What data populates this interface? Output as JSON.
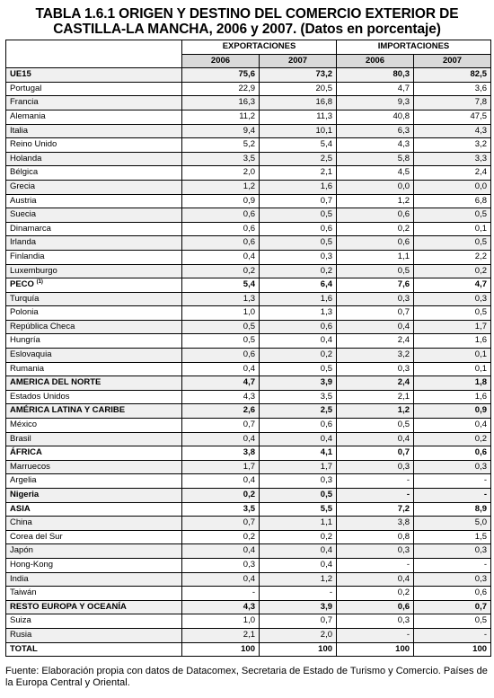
{
  "title": {
    "line1": "TABLA 1.6.1 ORIGEN Y DESTINO DEL COMERCIO EXTERIOR DE",
    "line2": "CASTILLA-LA MANCHA, 2006 y 2007. (Datos en porcentaje)"
  },
  "header": {
    "exportaciones": "EXPORTACIONES",
    "importaciones": "IMPORTACIONES",
    "years": [
      "2006",
      "2007",
      "2006",
      "2007"
    ]
  },
  "rows": [
    {
      "name": "UE15",
      "bold": true,
      "values": [
        "75,6",
        "73,2",
        "80,3",
        "82,5"
      ]
    },
    {
      "name": "Portugal",
      "values": [
        "22,9",
        "20,5",
        "4,7",
        "3,6"
      ]
    },
    {
      "name": "Francia",
      "values": [
        "16,3",
        "16,8",
        "9,3",
        "7,8"
      ]
    },
    {
      "name": "Alemania",
      "values": [
        "11,2",
        "11,3",
        "40,8",
        "47,5"
      ]
    },
    {
      "name": "Italia",
      "values": [
        "9,4",
        "10,1",
        "6,3",
        "4,3"
      ]
    },
    {
      "name": "Reino Unido",
      "values": [
        "5,2",
        "5,4",
        "4,3",
        "3,2"
      ]
    },
    {
      "name": "Holanda",
      "values": [
        "3,5",
        "2,5",
        "5,8",
        "3,3"
      ]
    },
    {
      "name": "Bélgica",
      "values": [
        "2,0",
        "2,1",
        "4,5",
        "2,4"
      ]
    },
    {
      "name": "Grecia",
      "values": [
        "1,2",
        "1,6",
        "0,0",
        "0,0"
      ]
    },
    {
      "name": "Austria",
      "values": [
        "0,9",
        "0,7",
        "1,2",
        "6,8"
      ]
    },
    {
      "name": "Suecia",
      "values": [
        "0,6",
        "0,5",
        "0,6",
        "0,5"
      ]
    },
    {
      "name": "Dinamarca",
      "values": [
        "0,6",
        "0,6",
        "0,2",
        "0,1"
      ]
    },
    {
      "name": "Irlanda",
      "values": [
        "0,6",
        "0,5",
        "0,6",
        "0,5"
      ]
    },
    {
      "name": "Finlandia",
      "values": [
        "0,4",
        "0,3",
        "1,1",
        "2,2"
      ]
    },
    {
      "name": "Luxemburgo",
      "values": [
        "0,2",
        "0,2",
        "0,5",
        "0,2"
      ]
    },
    {
      "name": "PECO",
      "sup": "(1)",
      "bold": true,
      "values": [
        "5,4",
        "6,4",
        "7,6",
        "4,7"
      ]
    },
    {
      "name": "Turquía",
      "values": [
        "1,3",
        "1,6",
        "0,3",
        "0,3"
      ]
    },
    {
      "name": "Polonia",
      "values": [
        "1,0",
        "1,3",
        "0,7",
        "0,5"
      ]
    },
    {
      "name": "República Checa",
      "values": [
        "0,5",
        "0,6",
        "0,4",
        "1,7"
      ]
    },
    {
      "name": "Hungría",
      "values": [
        "0,5",
        "0,4",
        "2,4",
        "1,6"
      ]
    },
    {
      "name": "Eslovaquia",
      "values": [
        "0,6",
        "0,2",
        "3,2",
        "0,1"
      ]
    },
    {
      "name": "Rumania",
      "values": [
        "0,4",
        "0,5",
        "0,3",
        "0,1"
      ]
    },
    {
      "name": "AMERICA DEL NORTE",
      "bold": true,
      "values": [
        "4,7",
        "3,9",
        "2,4",
        "1,8"
      ]
    },
    {
      "name": "Estados Unidos",
      "values": [
        "4,3",
        "3,5",
        "2,1",
        "1,6"
      ]
    },
    {
      "name": "AMÉRICA LATINA Y CARIBE",
      "bold": true,
      "values": [
        "2,6",
        "2,5",
        "1,2",
        "0,9"
      ]
    },
    {
      "name": "México",
      "values": [
        "0,7",
        "0,6",
        "0,5",
        "0,4"
      ]
    },
    {
      "name": "Brasil",
      "values": [
        "0,4",
        "0,4",
        "0,4",
        "0,2"
      ]
    },
    {
      "name": "ÁFRICA",
      "bold": true,
      "values": [
        "3,8",
        "4,1",
        "0,7",
        "0,6"
      ]
    },
    {
      "name": "Marruecos",
      "values": [
        "1,7",
        "1,7",
        "0,3",
        "0,3"
      ]
    },
    {
      "name": "Argelia",
      "values": [
        "0,4",
        "0,3",
        "-",
        "-"
      ]
    },
    {
      "name": "Nigeria",
      "bold": true,
      "values": [
        "0,2",
        "0,5",
        "-",
        "-"
      ]
    },
    {
      "name": "ASIA",
      "bold": true,
      "values": [
        "3,5",
        "5,5",
        "7,2",
        "8,9"
      ]
    },
    {
      "name": "China",
      "values": [
        "0,7",
        "1,1",
        "3,8",
        "5,0"
      ]
    },
    {
      "name": "Corea del Sur",
      "values": [
        "0,2",
        "0,2",
        "0,8",
        "1,5"
      ]
    },
    {
      "name": "Japón",
      "values": [
        "0,4",
        "0,4",
        "0,3",
        "0,3"
      ]
    },
    {
      "name": "Hong-Kong",
      "values": [
        "0,3",
        "0,4",
        "-",
        "-"
      ]
    },
    {
      "name": "India",
      "values": [
        "0,4",
        "1,2",
        "0,4",
        "0,3"
      ]
    },
    {
      "name": "Taiwán",
      "values": [
        "-",
        "-",
        "0,2",
        "0,6"
      ]
    },
    {
      "name": "RESTO EUROPA Y OCEANÍA",
      "bold": true,
      "values": [
        "4,3",
        "3,9",
        "0,6",
        "0,7"
      ]
    },
    {
      "name": "Suiza",
      "values": [
        "1,0",
        "0,7",
        "0,3",
        "0,5"
      ]
    },
    {
      "name": "Rusia",
      "values": [
        "2,1",
        "2,0",
        "-",
        "-"
      ]
    },
    {
      "name": "TOTAL",
      "total": true,
      "values": [
        "100",
        "100",
        "100",
        "100"
      ]
    }
  ],
  "source": "Fuente: Elaboración propia con datos de Datacomex, Secretaria de Estado de Turismo y Comercio. Países de la Europa Central y Oriental."
}
